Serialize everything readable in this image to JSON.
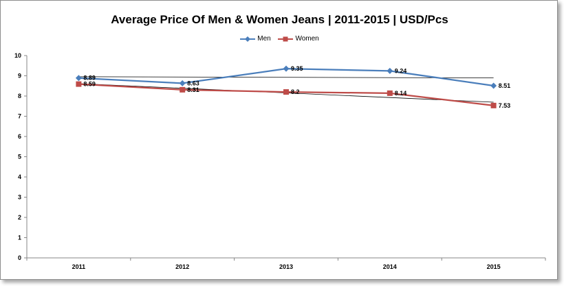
{
  "chart_data": {
    "type": "line",
    "title": "Average Price Of Men & Women Jeans | 2011-2015 | USD/Pcs",
    "categories": [
      "2011",
      "2012",
      "2013",
      "2014",
      "2015"
    ],
    "ylim": [
      0,
      10
    ],
    "yticks": [
      "0",
      "1",
      "2",
      "3",
      "4",
      "5",
      "6",
      "7",
      "8",
      "9",
      "10"
    ],
    "grid": false,
    "legend": "top-center",
    "trendlines": true,
    "series": [
      {
        "name": "Men",
        "values": [
          8.89,
          8.63,
          9.35,
          9.24,
          8.51
        ],
        "labels": [
          "8.89",
          "8.63",
          "9.35",
          "9.24",
          "8.51"
        ],
        "color": "#4a7ebb",
        "marker": "diamond"
      },
      {
        "name": "Women",
        "values": [
          8.59,
          8.31,
          8.2,
          8.14,
          7.53
        ],
        "labels": [
          "8.59",
          "8.31",
          "8.2",
          "8.14",
          "7.53"
        ],
        "color": "#be4b48",
        "marker": "square"
      }
    ]
  }
}
